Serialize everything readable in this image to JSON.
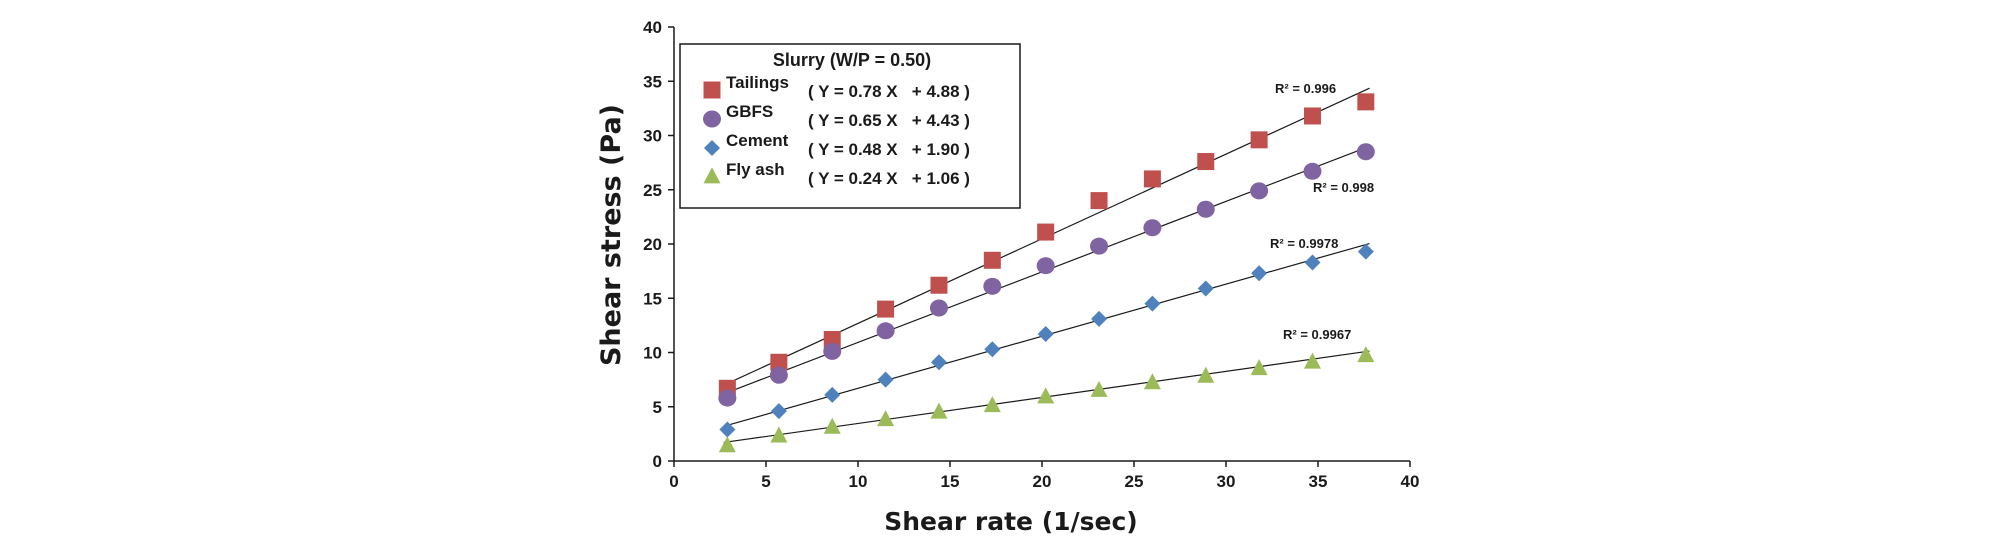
{
  "chart_data": {
    "type": "scatter",
    "xlabel": "Shear rate (1/sec)",
    "ylabel": "Shear stress (Pa)",
    "xlim": [
      0,
      40
    ],
    "ylim": [
      0,
      40
    ],
    "xticks": [
      0,
      5,
      10,
      15,
      20,
      25,
      30,
      35,
      40
    ],
    "yticks": [
      0,
      5,
      10,
      15,
      20,
      25,
      30,
      35,
      40
    ],
    "grid": false,
    "legend": {
      "title": "Slurry (W/P = 0.50)",
      "placement": "top-left"
    },
    "x": [
      2.9,
      5.7,
      8.6,
      11.5,
      14.4,
      17.3,
      20.2,
      23.1,
      26.0,
      28.9,
      31.8,
      34.7,
      37.6
    ],
    "series": [
      {
        "name": "Tailings",
        "marker": "square",
        "color": "#c0504d",
        "equation": "( Y = 0.78 X   + 4.88 )",
        "r2_label": "R² = 0.996",
        "fit": {
          "slope": 0.78,
          "intercept": 4.88
        },
        "values": [
          6.7,
          9.1,
          11.2,
          14.0,
          16.2,
          18.5,
          21.1,
          24.0,
          26.0,
          27.6,
          29.6,
          31.8,
          33.1
        ]
      },
      {
        "name": "GBFS",
        "marker": "circle",
        "color": "#8064a2",
        "equation": "( Y = 0.65 X   + 4.43 )",
        "r2_label": "R² = 0.998",
        "fit": {
          "slope": 0.65,
          "intercept": 4.43
        },
        "values": [
          5.8,
          7.9,
          10.1,
          12.0,
          14.1,
          16.1,
          18.0,
          19.8,
          21.5,
          23.2,
          24.9,
          26.7,
          28.5
        ]
      },
      {
        "name": "Cement",
        "marker": "diamond",
        "color": "#4f81bd",
        "equation": "( Y = 0.48 X   + 1.90 )",
        "r2_label": "R² = 0.9978",
        "fit": {
          "slope": 0.48,
          "intercept": 1.9
        },
        "values": [
          2.9,
          4.6,
          6.1,
          7.5,
          9.1,
          10.3,
          11.7,
          13.1,
          14.5,
          15.9,
          17.3,
          18.3,
          19.3
        ]
      },
      {
        "name": "Fly ash",
        "marker": "triangle",
        "color": "#9bbb59",
        "equation": "( Y = 0.24 X   + 1.06 )",
        "r2_label": "R² = 0.9967",
        "fit": {
          "slope": 0.24,
          "intercept": 1.06
        },
        "values": [
          1.4,
          2.3,
          3.1,
          3.8,
          4.5,
          5.1,
          5.9,
          6.5,
          7.2,
          7.8,
          8.5,
          9.1,
          9.7
        ]
      }
    ]
  }
}
